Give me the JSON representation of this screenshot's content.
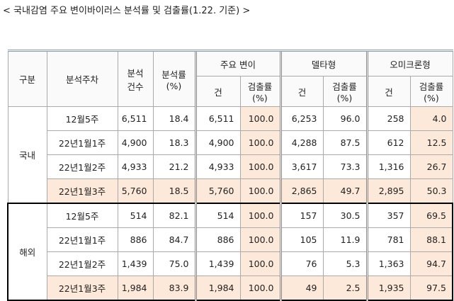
{
  "title": "< 국내감염 주요 변이바이러스 분석률 및 검출률(1.22. 기준) >",
  "table": {
    "header": {
      "group": "구분",
      "week": "분석주차",
      "count": [
        "분석",
        "건수"
      ],
      "rate": [
        "분석률",
        "(%)"
      ],
      "variants": [
        {
          "name": "주요 변이",
          "count": "건",
          "rate": [
            "검출률",
            "(%)"
          ]
        },
        {
          "name": "델타형",
          "count": "건",
          "rate": [
            "검출률",
            "(%)"
          ]
        },
        {
          "name": "오미크론형",
          "count": "건",
          "rate": [
            "검출률",
            "(%)"
          ]
        }
      ]
    },
    "groups": [
      {
        "label": "국내",
        "rows": [
          [
            "12월5주",
            "6,511",
            "18.4",
            "6,511",
            "100.0",
            "6,253",
            "96.0",
            "258",
            "4.0"
          ],
          [
            "22년1월1주",
            "4,900",
            "18.3",
            "4,900",
            "100.0",
            "4,288",
            "87.5",
            "612",
            "12.5"
          ],
          [
            "22년1월2주",
            "4,933",
            "21.2",
            "4,933",
            "100.0",
            "3,617",
            "73.3",
            "1,316",
            "26.7"
          ],
          [
            "22년1월3주",
            "5,760",
            "18.5",
            "5,760",
            "100.0",
            "2,865",
            "49.7",
            "2,895",
            "50.3"
          ]
        ]
      },
      {
        "label": "해외",
        "rows": [
          [
            "12월5주",
            "514",
            "82.1",
            "514",
            "100.0",
            "157",
            "30.5",
            "357",
            "69.5"
          ],
          [
            "22년1월1주",
            "886",
            "84.7",
            "886",
            "100.0",
            "105",
            "11.9",
            "781",
            "88.1"
          ],
          [
            "22년1월2주",
            "1,439",
            "75.0",
            "1,439",
            "100.0",
            "76",
            "5.3",
            "1,363",
            "94.7"
          ],
          [
            "22년1월3주",
            "1,984",
            "83.9",
            "1,984",
            "100.0",
            "49",
            "2.5",
            "1,935",
            "97.5"
          ]
        ]
      }
    ]
  }
}
